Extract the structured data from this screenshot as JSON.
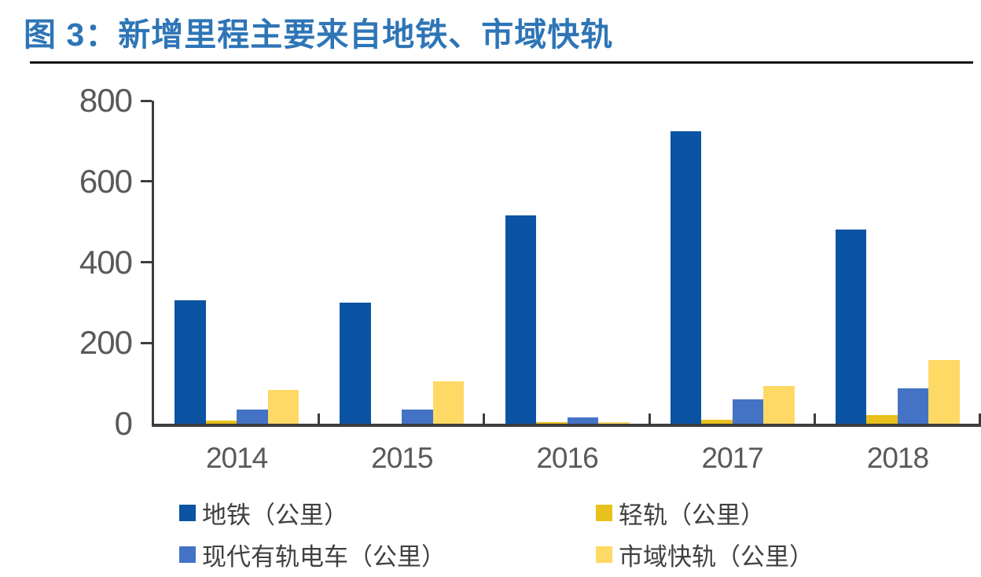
{
  "figure": {
    "title": "图 3：新增里程主要来自地铁、市域快轨"
  },
  "chart_data": {
    "type": "bar",
    "title": "图 3：新增里程主要来自地铁、市域快轨",
    "categories": [
      "2014",
      "2015",
      "2016",
      "2017",
      "2018"
    ],
    "series": [
      {
        "id": "metro",
        "name": "地铁（公里）",
        "color": "#0B53A3",
        "values": [
          305,
          300,
          515,
          725,
          480
        ]
      },
      {
        "id": "light-rail",
        "name": "轻轨（公里）",
        "color": "#E8C11C",
        "values": [
          8,
          0,
          3,
          10,
          22
        ]
      },
      {
        "id": "modern-tram",
        "name": "现代有轨电车（公里）",
        "color": "#4473C5",
        "values": [
          36,
          36,
          15,
          61,
          88
        ]
      },
      {
        "id": "suburban-rapid-rail",
        "name": "市域快轨（公里）",
        "color": "#FFD966",
        "values": [
          84,
          105,
          4,
          94,
          158
        ]
      }
    ],
    "ylim": [
      0,
      800
    ],
    "yticks": [
      0,
      200,
      400,
      600,
      800
    ],
    "grid": false,
    "legend_position": "bottom",
    "legend_layout": "2-columns-2-rows",
    "axis_color": "#3D3D3D",
    "tick_label_color": "#595959",
    "legend_text_color": "#404040",
    "title_color": "#2E75B6",
    "rule_color": "#151515"
  }
}
